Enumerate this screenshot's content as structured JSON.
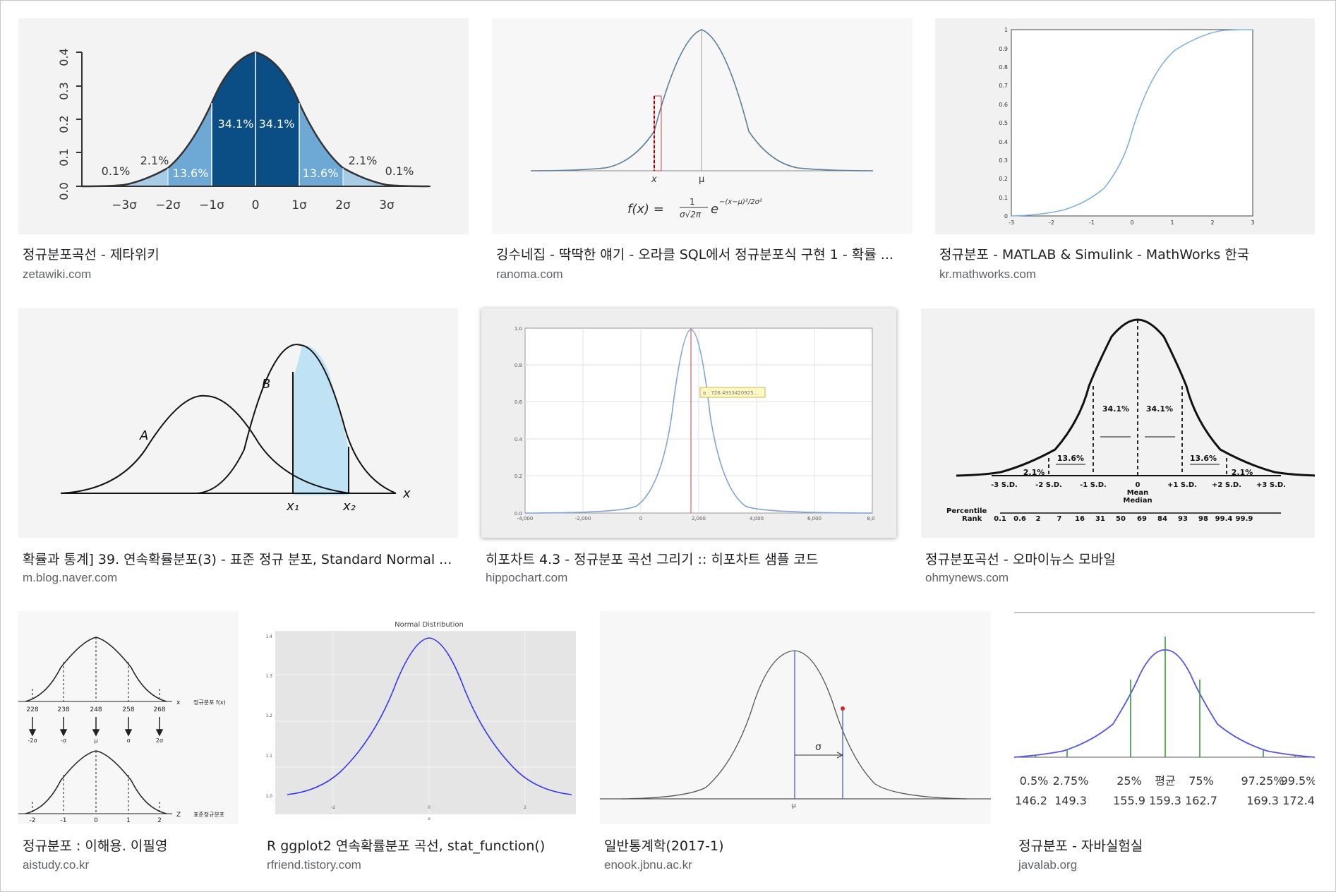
{
  "results": [
    {
      "title": "정규분포곡선 - 제타위키",
      "domain": "zetawiki.com",
      "image": {
        "yticks": [
          "0.0",
          "0.1",
          "0.2",
          "0.3",
          "0.4"
        ],
        "xticks": [
          "−3σ",
          "−2σ",
          "−1σ",
          "0",
          "1σ",
          "2σ",
          "3σ"
        ],
        "labels": [
          "0.1%",
          "2.1%",
          "13.6%",
          "34.1%",
          "34.1%",
          "13.6%",
          "2.1%",
          "0.1%"
        ],
        "colors": {
          "dark": "#0b4e85",
          "mid": "#2f7fba",
          "light": "#6ea9d6",
          "pale": "#a8cbe6"
        }
      }
    },
    {
      "title": "깅수네집 - 딱딱한 얘기 - 오라클 SQL에서 정규분포식 구현 1 - 확률 ...",
      "domain": "ranoma.com",
      "image": {
        "x_label": "x",
        "mu_label": "μ",
        "formula_lhs": "f(x) =",
        "formula_num": "1",
        "formula_den": "σ√2π",
        "formula_e": "e",
        "formula_exp": "−(x−μ)²/2σ²"
      }
    },
    {
      "title": "정규분포 - MATLAB & Simulink - MathWorks 한국",
      "domain": "kr.mathworks.com",
      "image": {
        "yticks": [
          "0",
          "0.1",
          "0.2",
          "0.3",
          "0.4",
          "0.5",
          "0.6",
          "0.7",
          "0.8",
          "0.9",
          "1"
        ],
        "xticks": [
          "-3",
          "-2",
          "-1",
          "0",
          "1",
          "2",
          "3"
        ]
      }
    },
    {
      "title": "확률과 통계] 39. 연속확률분포(3) - 표준 정규 분포, Standard Normal ...",
      "domain": "m.blog.naver.com",
      "image": {
        "curve_a": "A",
        "curve_b": "B",
        "x1": "x₁",
        "x2": "x₂",
        "axis": "x"
      }
    },
    {
      "title": "히포차트 4.3 - 정규분포 곡선 그리기 :: 히포차트 샘플 코드",
      "domain": "hippochart.com",
      "image": {
        "yticks": [
          "0.0",
          "0.2",
          "0.4",
          "0.6",
          "0.8",
          "1.0"
        ],
        "xticks": [
          "-4,000",
          "-2,000",
          "0",
          "2,000",
          "4,000",
          "6,000",
          "8,0"
        ],
        "tooltip": "α : 726.4933420925..."
      }
    },
    {
      "title": "정규분포곡선 - 오마이뉴스 모바일",
      "domain": "ohmynews.com",
      "image": {
        "sd_labels": [
          "-3 S.D.",
          "-2 S.D.",
          "-1 S.D.",
          "0",
          "+1 S.D.",
          "+2 S.D.",
          "+3 S.D."
        ],
        "mean_label": "Mean",
        "median_label": "Median",
        "pct": [
          "2.1%",
          "13.6%",
          "34.1%",
          "34.1%",
          "13.6%",
          "2.1%"
        ],
        "percentile_label": "Percentile",
        "rank_label": "Rank",
        "ranks": [
          "0.1",
          "0.6",
          "2",
          "7",
          "16",
          "31",
          "50",
          "69",
          "84",
          "93",
          "98",
          "99.4",
          "99.9"
        ]
      }
    },
    {
      "title": "정규분포 : 이해용. 이필영",
      "domain": "aistudy.co.kr",
      "image": {
        "top_ticks": [
          "228",
          "238",
          "248",
          "258",
          "268"
        ],
        "top_axis": "x",
        "top_caption": "정규분포 f(x)",
        "sym_ticks": [
          "-2σ",
          "-σ",
          "μ",
          "σ",
          "2σ"
        ],
        "bottom_ticks": [
          "-2",
          "-1",
          "0",
          "1",
          "2"
        ],
        "bottom_axis": "Z",
        "bottom_caption": "표준정규분포"
      }
    },
    {
      "title": "R ggplot2 연속확률분포 곡선, stat_function()",
      "domain": "rfriend.tistory.com",
      "image": {
        "plot_title": "Normal Distribution",
        "yticks": [
          "1.0",
          "1.1",
          "1.2",
          "1.3",
          "1.4"
        ],
        "xticks": [
          "-2",
          "0",
          "2"
        ],
        "xlabel": "x"
      }
    },
    {
      "title": "일반통계학(2017-1)",
      "domain": "enook.jbnu.ac.kr",
      "image": {
        "sigma": "σ",
        "mu": "μ"
      }
    },
    {
      "title": "정규분포 - 자바실험실",
      "domain": "javalab.org",
      "image": {
        "pct": [
          "0.5%",
          "2.75%",
          "25%",
          "평균",
          "75%",
          "97.25%",
          "99.5%"
        ],
        "vals": [
          "146.2",
          "149.3",
          "155.9",
          "159.3",
          "162.7",
          "169.3",
          "172.4"
        ]
      }
    }
  ]
}
